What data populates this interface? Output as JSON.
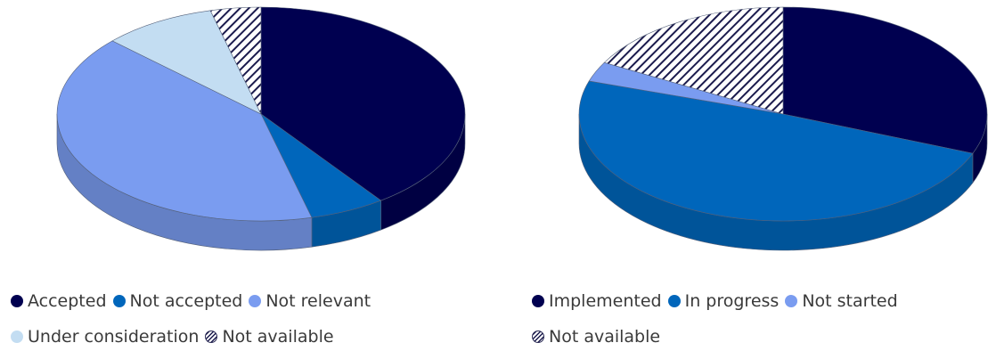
{
  "chart_data": [
    {
      "type": "pie",
      "style": "3d",
      "title": "",
      "categories": [
        "Accepted",
        "Not accepted",
        "Not relevant",
        "Under consideration",
        "Not available"
      ],
      "values": [
        40,
        6,
        41,
        9,
        4
      ],
      "colors": [
        "#000050",
        "#0066bb",
        "#7a9cf0",
        "#c3ddf2",
        "hatch"
      ],
      "legend": "bottom"
    },
    {
      "type": "pie",
      "style": "3d",
      "title": "",
      "categories": [
        "Implemented",
        "In progress",
        "Not started",
        "Not available"
      ],
      "values": [
        31,
        49,
        3,
        17
      ],
      "colors": [
        "#000050",
        "#0066bb",
        "#7a9cf0",
        "hatch"
      ],
      "legend": "bottom"
    }
  ]
}
